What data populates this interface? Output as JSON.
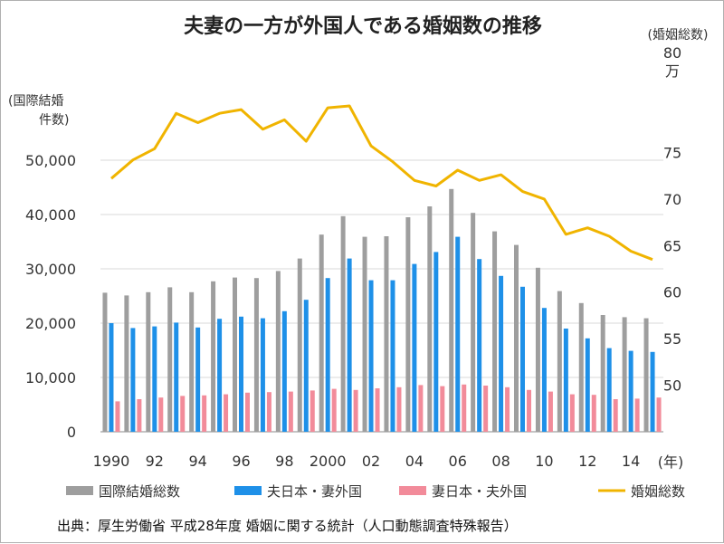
{
  "chart_data": {
    "type": "bar+line",
    "title": "夫妻の一方が外国人である婚姻数の推移",
    "y_left_label": [
      "(国際結婚",
      "件数)"
    ],
    "y_right_label": "(婚姻総数)",
    "y_right_top_unit": [
      "80",
      "万"
    ],
    "x_unit": "(年)",
    "ylim_left": [
      0,
      60000
    ],
    "ylim_right": [
      45,
      80
    ],
    "y_left_ticks": [
      "0",
      "10,000",
      "20,000",
      "30,000",
      "40,000",
      "50,000"
    ],
    "y_right_ticks": [
      "50",
      "55",
      "60",
      "65",
      "70",
      "75"
    ],
    "x": [
      1990,
      1991,
      1992,
      1993,
      1994,
      1995,
      1996,
      1997,
      1998,
      1999,
      2000,
      2001,
      2002,
      2003,
      2004,
      2005,
      2006,
      2007,
      2008,
      2009,
      2010,
      2011,
      2012,
      2013,
      2014,
      2015
    ],
    "x_tick_labels": [
      "1990",
      "92",
      "94",
      "96",
      "98",
      "2000",
      "02",
      "04",
      "06",
      "08",
      "10",
      "12",
      "14"
    ],
    "series": [
      {
        "name": "国際結婚総数",
        "kind": "bar",
        "color": "#9e9e9e",
        "values": [
          25600,
          25100,
          25700,
          26600,
          25700,
          27700,
          28400,
          28300,
          29600,
          31900,
          36300,
          39700,
          35900,
          36000,
          39500,
          41500,
          44700,
          40300,
          36900,
          34400,
          30200,
          25900,
          23700,
          21500,
          21100,
          20900
        ]
      },
      {
        "name": "夫日本・妻外国",
        "kind": "bar",
        "color": "#1e90e8",
        "values": [
          20000,
          19100,
          19400,
          20100,
          19200,
          20800,
          21200,
          20900,
          22200,
          24300,
          28300,
          31900,
          27900,
          27900,
          30900,
          33100,
          35900,
          31800,
          28700,
          26700,
          22800,
          19000,
          17200,
          15400,
          14900,
          14700
        ]
      },
      {
        "name": "妻日本・夫外国",
        "kind": "bar",
        "color": "#f28b9a",
        "values": [
          5600,
          6000,
          6300,
          6600,
          6700,
          6900,
          7200,
          7300,
          7400,
          7600,
          7900,
          7700,
          8000,
          8200,
          8600,
          8400,
          8700,
          8500,
          8200,
          7700,
          7400,
          6900,
          6800,
          6000,
          6100,
          6300
        ]
      },
      {
        "name": "婚姻総数",
        "kind": "line",
        "axis": "right",
        "color": "#f0b400",
        "values": [
          72.2,
          74.2,
          75.4,
          79.2,
          78.2,
          79.2,
          79.6,
          77.5,
          78.5,
          76.2,
          79.8,
          80.0,
          75.7,
          74.0,
          72.0,
          71.4,
          73.1,
          72.0,
          72.6,
          70.8,
          70.0,
          66.2,
          66.9,
          66.0,
          64.4,
          63.5
        ]
      }
    ],
    "grid": true,
    "legend_position": "bottom"
  },
  "source": "出典：厚生労働省 平成28年度 婚姻に関する統計（人口動態調査特殊報告）"
}
